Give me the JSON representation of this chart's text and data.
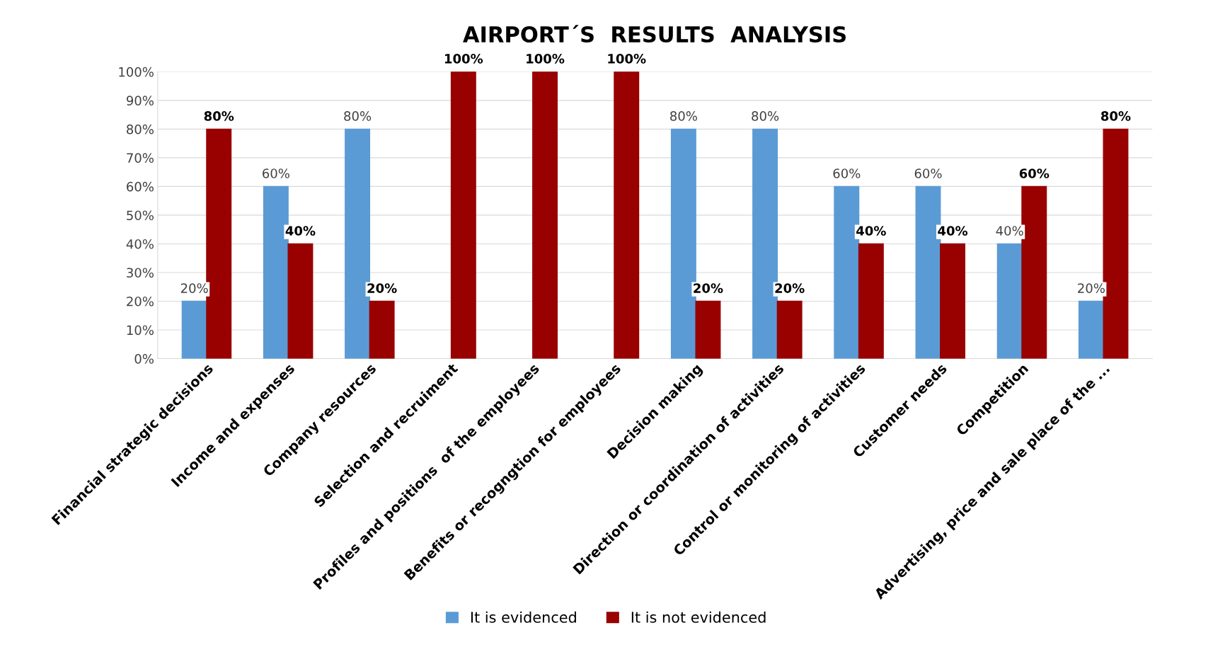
{
  "chart_data": {
    "type": "bar",
    "title": "AIRPORT´S  RESULTS  ANALYSIS",
    "categories": [
      "Financial strategic decisions",
      "Income and expenses",
      "Company resources",
      "Selection and recruiment",
      "Profiles and positions  of the employees",
      "Benefits or recogngtion for employees",
      "Decision making",
      "Direction or coordination of activities",
      "Control or monitoring of activities",
      "Customer needs",
      "Competition",
      "Advertising, price and sale place of the ..."
    ],
    "series": [
      {
        "name": "It is evidenced",
        "color": "#5b9bd5",
        "values": [
          20,
          60,
          80,
          null,
          null,
          null,
          80,
          80,
          60,
          60,
          40,
          20
        ],
        "value_labels": [
          "20%",
          "60%",
          "80%",
          null,
          null,
          null,
          "80%",
          "80%",
          "60%",
          "60%",
          "40%",
          "20%"
        ]
      },
      {
        "name": "It is not evidenced",
        "color": "#990000",
        "values": [
          80,
          40,
          20,
          100,
          100,
          100,
          20,
          20,
          40,
          40,
          60,
          80
        ],
        "value_labels": [
          "80%",
          "40%",
          "20%",
          "100%",
          "100%",
          "100%",
          "20%",
          "20%",
          "40%",
          "40%",
          "60%",
          "80%"
        ]
      }
    ],
    "ylim": [
      0,
      100
    ],
    "yticks": [
      {
        "value": 0,
        "label": "0%"
      },
      {
        "value": 10,
        "label": "10%"
      },
      {
        "value": 20,
        "label": "20%"
      },
      {
        "value": 30,
        "label": "30%"
      },
      {
        "value": 40,
        "label": "40%"
      },
      {
        "value": 50,
        "label": "50%"
      },
      {
        "value": 60,
        "label": "60%"
      },
      {
        "value": 70,
        "label": "70%"
      },
      {
        "value": 80,
        "label": "80%"
      },
      {
        "value": 90,
        "label": "90%"
      },
      {
        "value": 100,
        "label": "100%"
      }
    ],
    "grid": "y",
    "legend": "bottom"
  }
}
